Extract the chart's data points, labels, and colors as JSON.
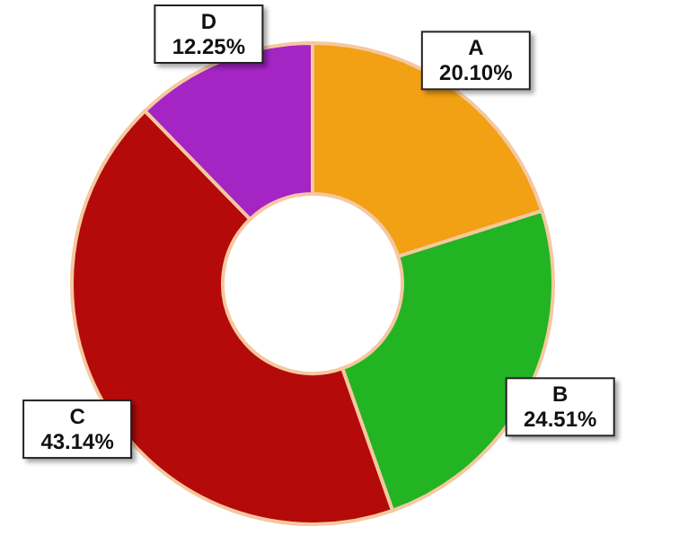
{
  "chart_data": {
    "type": "donut",
    "categories": [
      "A",
      "B",
      "C",
      "D"
    ],
    "values": [
      20.1,
      24.51,
      43.14,
      12.25
    ],
    "colors": [
      "#f2a014",
      "#22b422",
      "#b40a0a",
      "#a424c4"
    ],
    "value_labels": [
      "20.10%",
      "24.51%",
      "43.14%",
      "12.25%"
    ]
  }
}
